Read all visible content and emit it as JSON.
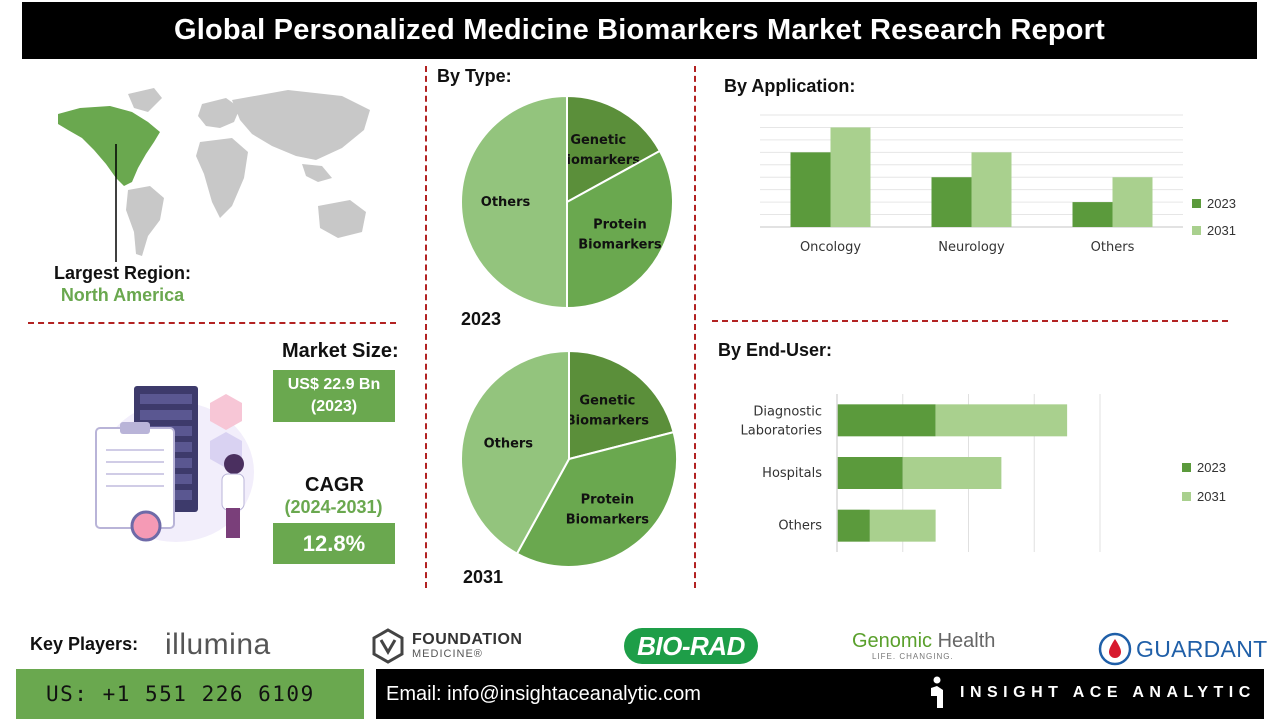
{
  "title": "Global Personalized Medicine Biomarkers Market Research Report",
  "region": {
    "label": "Largest Region:",
    "value": "North America"
  },
  "market_size": {
    "label": "Market Size:",
    "value_line1": "US$ 22.9 Bn",
    "value_line2": "(2023)"
  },
  "cagr": {
    "label": "CAGR",
    "period": "(2024-2031)",
    "value": "12.8%"
  },
  "by_type": {
    "label": "By Type:",
    "year_2023": "2023",
    "year_2031": "2031"
  },
  "by_application": {
    "label": "By  Application:"
  },
  "by_end_user": {
    "label": "By End-User:"
  },
  "colors": {
    "dark_green": "#5b8f3a",
    "mid_green": "#6aa84f",
    "light_green": "#93c47d",
    "pale_green": "#a9d08e",
    "divider_red": "#b22222",
    "map_grey": "#c8c8c8",
    "map_highlight": "#6aa84f"
  },
  "chart_data": [
    {
      "type": "pie",
      "year": "2023",
      "labels": [
        "Genetic Biomarkers",
        "Protein Biomarkers",
        "Others"
      ],
      "values": [
        17,
        33,
        50
      ]
    },
    {
      "type": "pie",
      "year": "2031",
      "labels": [
        "Genetic Biomarkers",
        "Protein Biomarkers",
        "Others"
      ],
      "values": [
        21,
        37,
        42
      ]
    },
    {
      "type": "bar",
      "orientation": "vertical",
      "categories": [
        "Oncology",
        "Neurology",
        "Others"
      ],
      "series": [
        {
          "name": "2023",
          "values": [
            3,
            2,
            1
          ]
        },
        {
          "name": "2031",
          "values": [
            4,
            3,
            2
          ]
        }
      ],
      "ylim": [
        0,
        4.5
      ],
      "grid": true,
      "legend": "right"
    },
    {
      "type": "bar",
      "orientation": "horizontal",
      "stacked": true,
      "categories": [
        "Diagnostic Laboratories",
        "Hospitals",
        "Others"
      ],
      "series": [
        {
          "name": "2023",
          "values": [
            1.5,
            1.0,
            0.5
          ]
        },
        {
          "name": "2031",
          "values": [
            2.0,
            1.5,
            1.0
          ]
        }
      ],
      "xlim": [
        0,
        4
      ],
      "grid": true,
      "legend": "right"
    }
  ],
  "key_players": {
    "label": "Key Players:",
    "illumina": "illumina",
    "foundation_line1": "FOUNDATION",
    "foundation_line2": "MEDICINE®",
    "biorad": "BIO-RAD",
    "genomic_line1_a": "Genomic",
    "genomic_line1_b": "Health",
    "genomic_line2": "LIFE. CHANGING.",
    "guardant": "GUARDANT"
  },
  "contact": {
    "phone": "US: +1 551 226 6109",
    "email": "Email: info@insightaceanalytic.com",
    "brand": "INSIGHT ACE ANALYTIC"
  }
}
